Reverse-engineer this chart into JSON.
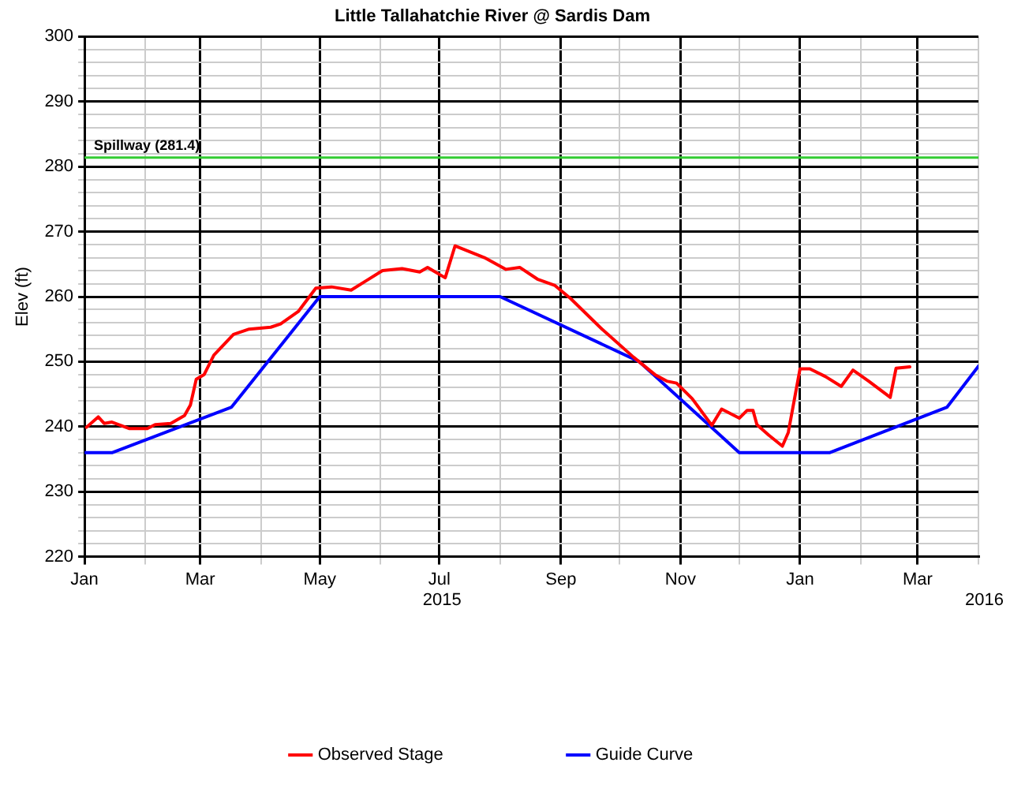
{
  "chart_data": {
    "type": "line",
    "title": "Little Tallahatchie River @ Sardis Dam",
    "ylabel": "Elev (ft)",
    "xlim": [
      "2015-01-01",
      "2016-04-01"
    ],
    "xticks": [
      {
        "value": "2015-01-01",
        "label": "Jan"
      },
      {
        "value": "2015-02-01",
        "label": null
      },
      {
        "value": "2015-03-01",
        "label": "Mar"
      },
      {
        "value": "2015-04-01",
        "label": null
      },
      {
        "value": "2015-05-01",
        "label": "May"
      },
      {
        "value": "2015-06-01",
        "label": null
      },
      {
        "value": "2015-07-01",
        "label": "Jul"
      },
      {
        "value": "2015-08-01",
        "label": null
      },
      {
        "value": "2015-09-01",
        "label": "Sep"
      },
      {
        "value": "2015-10-01",
        "label": null
      },
      {
        "value": "2015-11-01",
        "label": "Nov"
      },
      {
        "value": "2015-12-01",
        "label": null
      },
      {
        "value": "2016-01-01",
        "label": "Jan"
      },
      {
        "value": "2016-02-01",
        "label": null
      },
      {
        "value": "2016-03-01",
        "label": "Mar"
      },
      {
        "value": "2016-04-01",
        "label": null
      }
    ],
    "annotations": [
      "2015",
      "2016"
    ],
    "ylim": [
      220,
      300
    ],
    "yticks": [
      220,
      {
        "value": 222,
        "label": null
      },
      {
        "value": 224,
        "label": null
      },
      {
        "value": 226,
        "label": null
      },
      {
        "value": 228,
        "label": null
      },
      230,
      {
        "value": 232,
        "label": null
      },
      {
        "value": 234,
        "label": null
      },
      {
        "value": 236,
        "label": null
      },
      {
        "value": 238,
        "label": null
      },
      240,
      {
        "value": 242,
        "label": null
      },
      {
        "value": 244,
        "label": null
      },
      {
        "value": 246,
        "label": null
      },
      {
        "value": 248,
        "label": null
      },
      250,
      {
        "value": 252,
        "label": null
      },
      {
        "value": 254,
        "label": null
      },
      {
        "value": 256,
        "label": null
      },
      {
        "value": 258,
        "label": null
      },
      260,
      {
        "value": 262,
        "label": null
      },
      {
        "value": 264,
        "label": null
      },
      {
        "value": 266,
        "label": null
      },
      {
        "value": 268,
        "label": null
      },
      270,
      {
        "value": 272,
        "label": null
      },
      {
        "value": 274,
        "label": null
      },
      {
        "value": 276,
        "label": null
      },
      {
        "value": 278,
        "label": null
      },
      280,
      {
        "value": 282,
        "label": null
      },
      {
        "value": 284,
        "label": null
      },
      {
        "value": 286,
        "label": null
      },
      {
        "value": 288,
        "label": null
      },
      290,
      {
        "value": 292,
        "label": null
      },
      {
        "value": 294,
        "label": null
      },
      {
        "value": 296,
        "label": null
      },
      {
        "value": 298,
        "label": null
      },
      300
    ],
    "grid": true,
    "legend": "bottom",
    "marker": "none",
    "line_style": "solid",
    "ref_lines": [
      {
        "axis": "y",
        "value": 281.4,
        "label": "Spillway (281.4)",
        "color": "#33cc33"
      }
    ],
    "series": [
      {
        "name": "Observed Stage",
        "color": "#ff0000",
        "x": [
          "2015-01-02",
          "2015-01-08",
          "2015-01-11",
          "2015-01-15",
          "2015-01-24",
          "2015-02-02",
          "2015-02-06",
          "2015-02-14",
          "2015-02-21",
          "2015-02-24",
          "2015-02-27",
          "2015-03-03",
          "2015-03-08",
          "2015-03-18",
          "2015-03-26",
          "2015-04-06",
          "2015-04-11",
          "2015-04-20",
          "2015-04-25",
          "2015-04-29",
          "2015-05-07",
          "2015-05-17",
          "2015-05-25",
          "2015-06-02",
          "2015-06-12",
          "2015-06-21",
          "2015-06-25",
          "2015-07-04",
          "2015-07-09",
          "2015-07-24",
          "2015-08-04",
          "2015-08-11",
          "2015-08-20",
          "2015-08-29",
          "2015-09-06",
          "2015-09-22",
          "2015-10-08",
          "2015-10-19",
          "2015-10-25",
          "2015-10-30",
          "2015-11-07",
          "2015-11-17",
          "2015-11-22",
          "2015-12-01",
          "2015-12-05",
          "2015-12-08",
          "2015-12-10",
          "2015-12-16",
          "2015-12-23",
          "2015-12-26",
          "2016-01-01",
          "2016-01-06",
          "2016-01-14",
          "2016-01-22",
          "2016-01-28",
          "2016-02-05",
          "2016-02-16",
          "2016-02-19",
          "2016-02-26"
        ],
        "values": [
          239.9,
          241.5,
          240.5,
          240.7,
          239.7,
          239.7,
          240.3,
          240.5,
          241.7,
          243.3,
          247.3,
          248,
          251,
          254.2,
          255,
          255.3,
          255.8,
          257.7,
          259.7,
          261.3,
          261.5,
          261,
          262.5,
          264,
          264.3,
          263.8,
          264.5,
          262.9,
          267.8,
          266,
          264.2,
          264.5,
          262.7,
          261.7,
          259.7,
          255,
          250.7,
          248,
          247,
          246.7,
          244.3,
          240.2,
          242.7,
          241.3,
          242.5,
          242.5,
          240.3,
          238.7,
          237,
          239.1,
          248.9,
          248.9,
          247.7,
          246.2,
          248.7,
          247,
          244.5,
          249,
          249.2
        ]
      },
      {
        "name": "Guide Curve",
        "color": "#0000ff",
        "x": [
          "2015-01-01",
          "2015-01-15",
          "2015-03-17",
          "2015-05-01",
          "2015-08-01",
          "2015-10-11",
          "2015-12-01",
          "2016-01-16",
          "2016-03-16",
          "2016-04-01"
        ],
        "values": [
          236,
          236,
          243,
          260,
          260,
          250,
          236,
          236,
          243,
          249.3
        ]
      }
    ]
  }
}
